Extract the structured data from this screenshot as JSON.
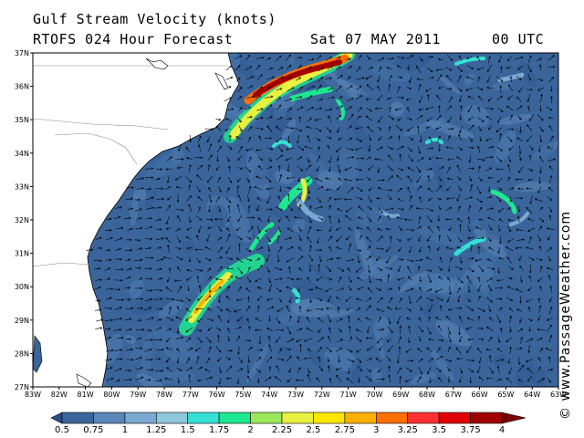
{
  "header": {
    "title": "Gulf Stream Velocity (knots)",
    "model": "RTOFS 024 Hour Forecast",
    "date": "Sat 07 MAY 2011",
    "time": "00 UTC"
  },
  "map": {
    "lat_labels": [
      "37N",
      "36N",
      "35N",
      "34N",
      "33N",
      "32N",
      "31N",
      "30N",
      "29N",
      "28N",
      "27N"
    ],
    "lon_labels": [
      "83W",
      "82W",
      "81W",
      "80W",
      "79W",
      "78W",
      "77W",
      "76W",
      "75W",
      "74W",
      "73W",
      "72W",
      "71W",
      "70W",
      "69W",
      "68W",
      "67W",
      "66W",
      "65W",
      "64W",
      "63W"
    ],
    "lat_range": [
      27,
      37
    ],
    "lon_range": [
      -83,
      -63
    ],
    "ocean_color": "#3a659b",
    "land_color": "#ffffff",
    "vector_color": "#000000",
    "current_features": [
      {
        "name": "gulf stream north wall",
        "speed_knots": 3.9
      },
      {
        "name": "gulf stream core off florida",
        "speed_knots": 2.8
      },
      {
        "name": "eddy near 33N 73W",
        "speed_knots": 2.7
      },
      {
        "name": "eddy near 32N 66W",
        "speed_knots": 2.2
      }
    ]
  },
  "colorbar": {
    "labels": [
      "0.5",
      "0.75",
      "1",
      "1.25",
      "1.5",
      "1.75",
      "2",
      "2.25",
      "2.5",
      "2.75",
      "3",
      "3.25",
      "3.5",
      "3.75",
      "4"
    ],
    "colors": [
      "#2a4f86",
      "#3a659b",
      "#5a86b8",
      "#7aa8d0",
      "#8fc7dc",
      "#34e0d3",
      "#1ee88f",
      "#9be85a",
      "#e8f040",
      "#ffe600",
      "#ffb000",
      "#ff7000",
      "#ff3030",
      "#e00000",
      "#a00000",
      "#7a0000"
    ]
  },
  "copyright": "© www.PassageWeather.com"
}
